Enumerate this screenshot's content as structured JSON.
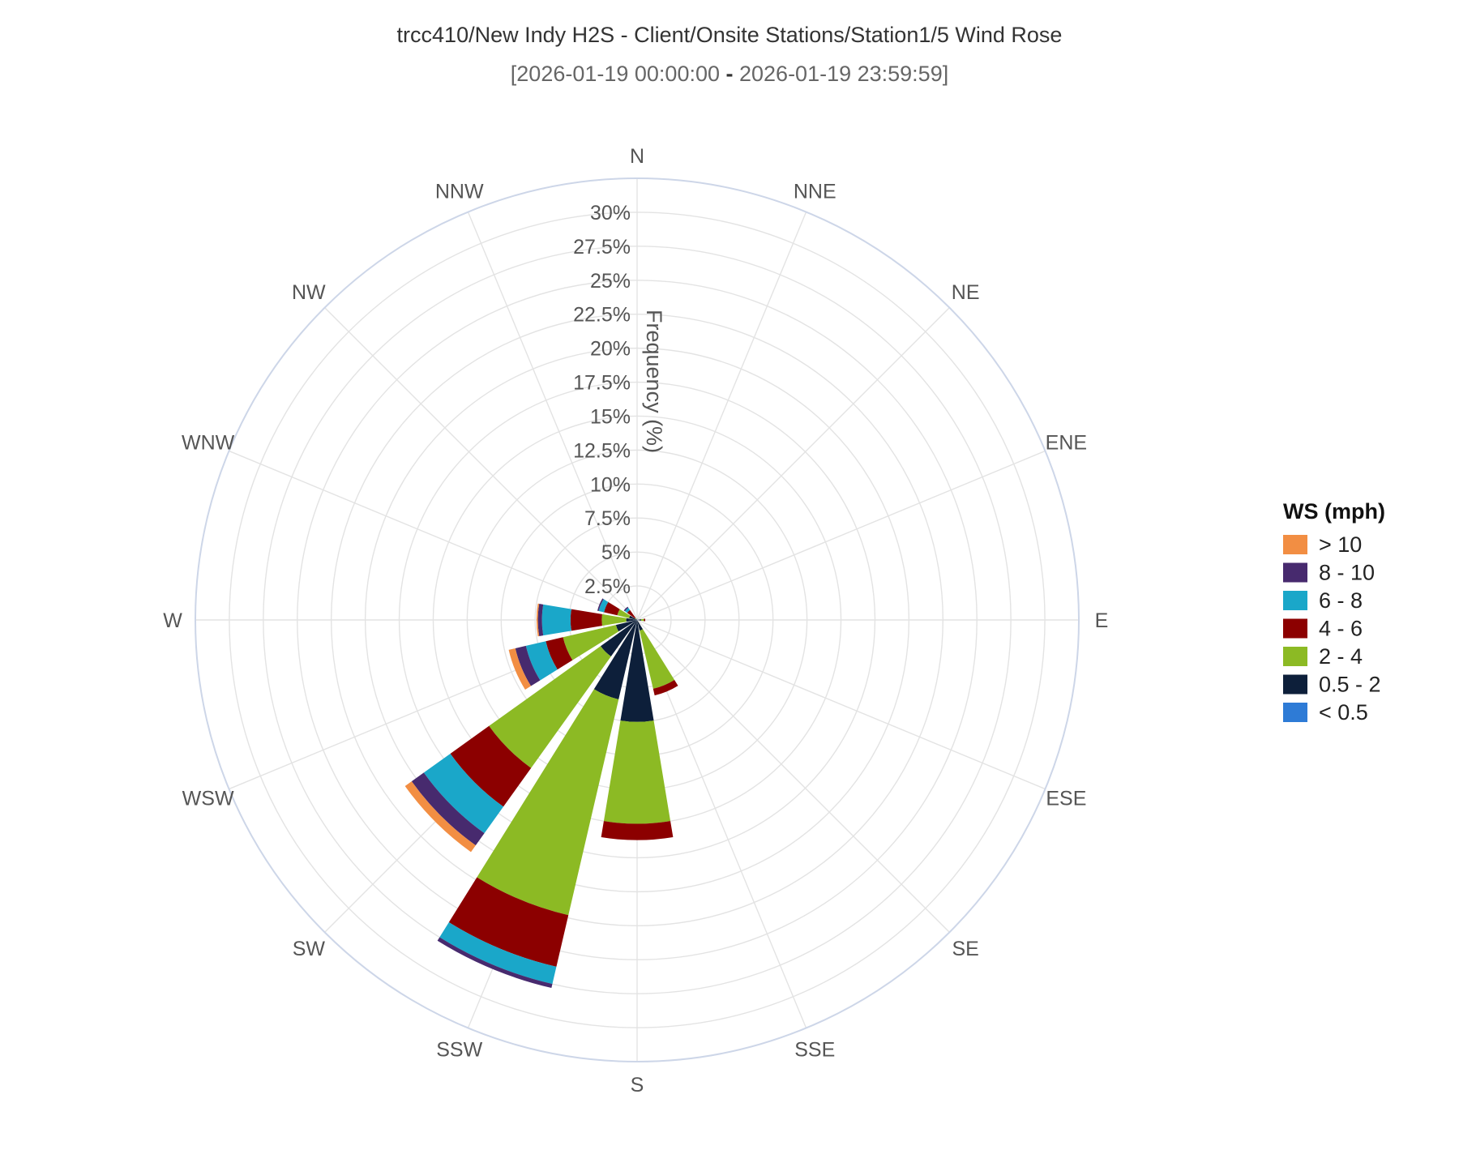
{
  "chart_data": {
    "type": "windrose",
    "title": "trcc410/New Indy H2S - Client/Onsite Stations/Station1/5 Wind Rose",
    "subtitle_start": "[2026-01-19 00:00:00",
    "subtitle_sep": " - ",
    "subtitle_end": "2026-01-19 23:59:59]",
    "radial_axis_label": "Frequency (%)",
    "radial_range": [
      0,
      32.5
    ],
    "radial_ticks": [
      "2.5%",
      "5%",
      "7.5%",
      "10%",
      "12.5%",
      "15%",
      "17.5%",
      "20%",
      "22.5%",
      "25%",
      "27.5%",
      "30%"
    ],
    "radial_tick_values": [
      2.5,
      5,
      7.5,
      10,
      12.5,
      15,
      17.5,
      20,
      22.5,
      25,
      27.5,
      30
    ],
    "directions": [
      "N",
      "NNE",
      "NE",
      "ENE",
      "E",
      "ESE",
      "SE",
      "SSE",
      "S",
      "SSW",
      "SW",
      "WSW",
      "W",
      "WNW",
      "NW",
      "NNW"
    ],
    "legend_title": "WS (mph)",
    "legend_placement": "right",
    "series": [
      {
        "name": "< 0.5",
        "color": "#2e7bd6",
        "values": [
          0,
          0,
          0,
          0,
          0,
          0,
          0,
          0,
          0,
          0,
          0,
          0,
          0.1,
          0,
          0,
          0
        ]
      },
      {
        "name": "0.5 - 2",
        "color": "#0d1f3a",
        "values": [
          0.1,
          0,
          0,
          0,
          0.3,
          0,
          0,
          0.8,
          7.5,
          6.0,
          3.3,
          1.6,
          0.7,
          0.6,
          0.1,
          0
        ]
      },
      {
        "name": "2 - 4",
        "color": "#8cba24",
        "values": [
          0,
          0,
          0,
          0,
          0.2,
          0,
          0,
          4.4,
          7.5,
          16.3,
          10.1,
          4.0,
          1.8,
          0.9,
          0.1,
          0
        ]
      },
      {
        "name": "4 - 6",
        "color": "#8c0000",
        "values": [
          0,
          0,
          0,
          0,
          0.1,
          0,
          0,
          0.5,
          1.2,
          3.9,
          3.5,
          1.3,
          2.3,
          1.0,
          0.7,
          0
        ]
      },
      {
        "name": "6 - 8",
        "color": "#1aa7c9",
        "values": [
          0,
          0,
          0,
          0,
          0,
          0,
          0,
          0,
          0,
          1.3,
          2.4,
          1.5,
          2.1,
          0.4,
          0.2,
          0
        ]
      },
      {
        "name": "8 - 10",
        "color": "#472a6e",
        "values": [
          0,
          0,
          0,
          0,
          0,
          0,
          0,
          0,
          0,
          0.3,
          1.1,
          0.8,
          0.3,
          0.1,
          0.1,
          0
        ]
      },
      {
        "name": "> 10",
        "color": "#f28e43",
        "values": [
          0,
          0,
          0,
          0,
          0,
          0,
          0,
          0,
          0,
          0,
          0.6,
          0.5,
          0.1,
          0,
          0,
          0
        ]
      }
    ],
    "grid": true,
    "colors": {
      "grid": "#e3e3e3",
      "outer_ring": "#cdd6e8",
      "text": "#555555",
      "title": "#333333"
    }
  }
}
